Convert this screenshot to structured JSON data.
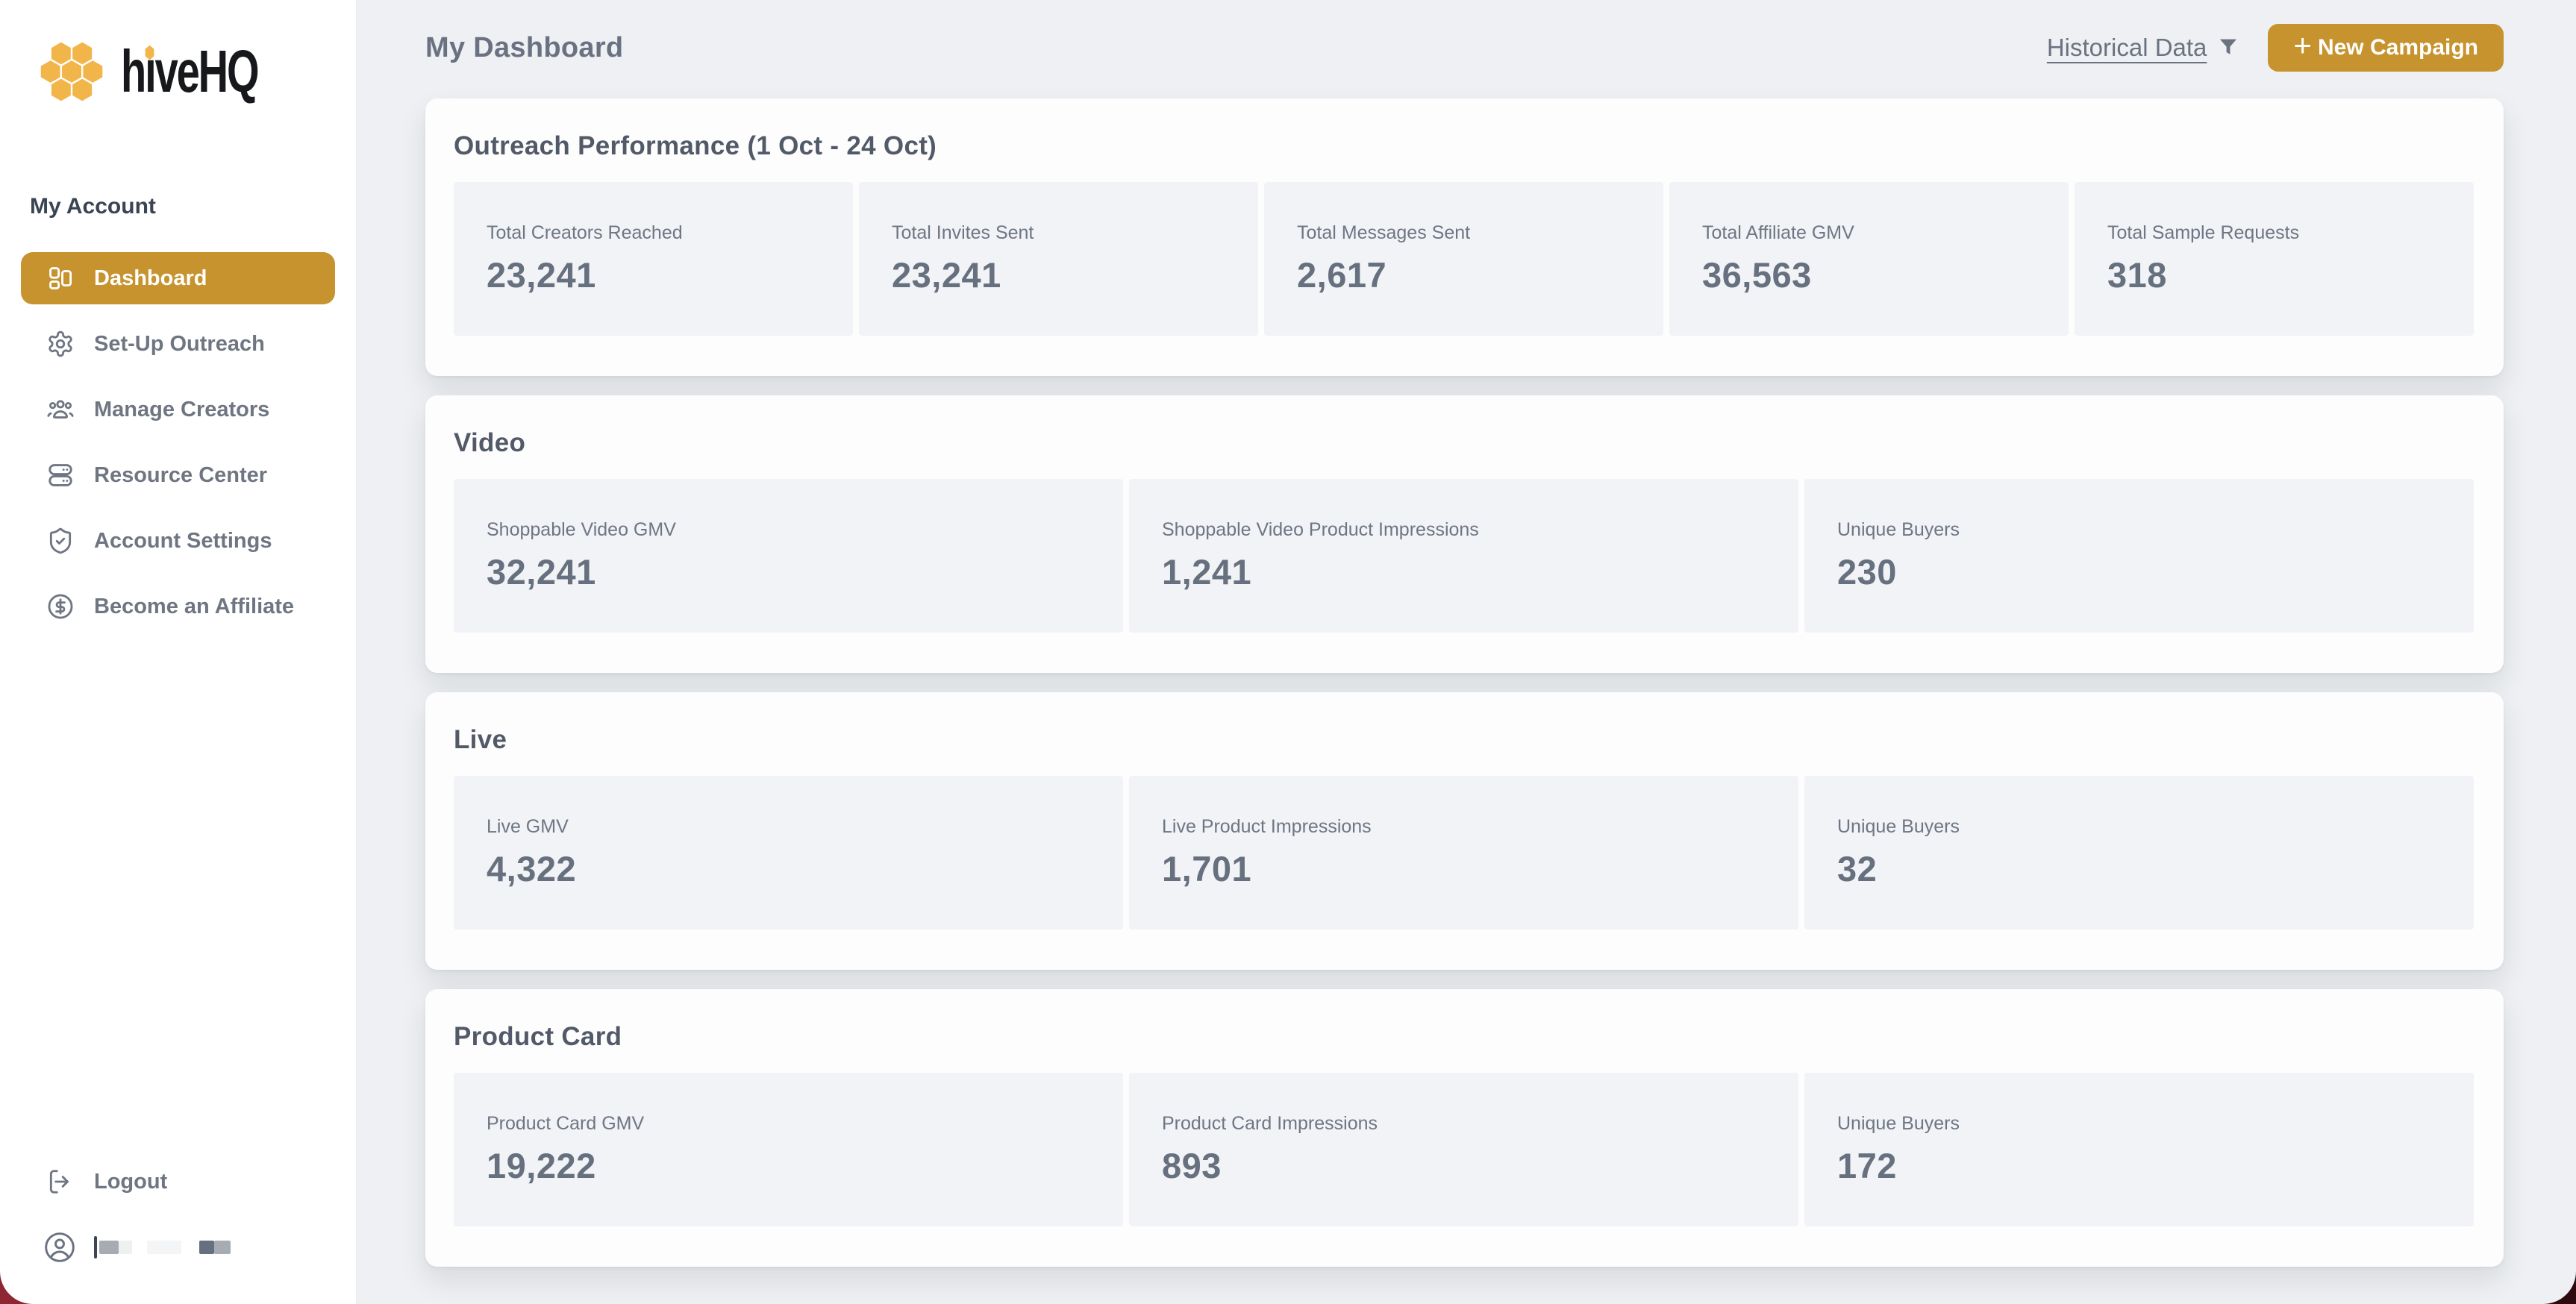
{
  "app": {
    "name": "hiveHQ",
    "accent_gold": "#c6932e",
    "logo_hex_gold": "#f2b54a"
  },
  "sidebar": {
    "section_label": "My Account",
    "items": [
      {
        "label": "Dashboard",
        "icon": "dashboard-icon",
        "active": true
      },
      {
        "label": "Set-Up Outreach",
        "icon": "gear-icon",
        "active": false
      },
      {
        "label": "Manage Creators",
        "icon": "users-icon",
        "active": false
      },
      {
        "label": "Resource Center",
        "icon": "database-icon",
        "active": false
      },
      {
        "label": "Account Settings",
        "icon": "shield-check-icon",
        "active": false
      },
      {
        "label": "Become an Affiliate",
        "icon": "dollar-circle-icon",
        "active": false
      }
    ],
    "logout_label": "Logout"
  },
  "header": {
    "title": "My Dashboard",
    "historical_link": "Historical Data",
    "new_campaign_plus": "+",
    "new_campaign_label": "New Campaign"
  },
  "cards": [
    {
      "title": "Outreach Performance (1 Oct - 24 Oct)",
      "metrics": [
        {
          "label": "Total Creators Reached",
          "value": "23,241"
        },
        {
          "label": "Total Invites Sent",
          "value": "23,241"
        },
        {
          "label": "Total Messages Sent",
          "value": "2,617"
        },
        {
          "label": "Total Affiliate GMV",
          "value": "36,563"
        },
        {
          "label": "Total Sample Requests",
          "value": "318"
        }
      ]
    },
    {
      "title": "Video",
      "metrics": [
        {
          "label": "Shoppable Video GMV",
          "value": "32,241"
        },
        {
          "label": "Shoppable Video Product Impressions",
          "value": "1,241"
        },
        {
          "label": "Unique Buyers",
          "value": "230"
        }
      ]
    },
    {
      "title": "Live",
      "metrics": [
        {
          "label": "Live GMV",
          "value": "4,322"
        },
        {
          "label": "Live Product Impressions",
          "value": "1,701"
        },
        {
          "label": "Unique Buyers",
          "value": "32"
        }
      ]
    },
    {
      "title": "Product Card",
      "metrics": [
        {
          "label": "Product Card GMV",
          "value": "19,222"
        },
        {
          "label": "Product Card Impressions",
          "value": "893"
        },
        {
          "label": "Unique Buyers",
          "value": "172"
        }
      ]
    }
  ]
}
